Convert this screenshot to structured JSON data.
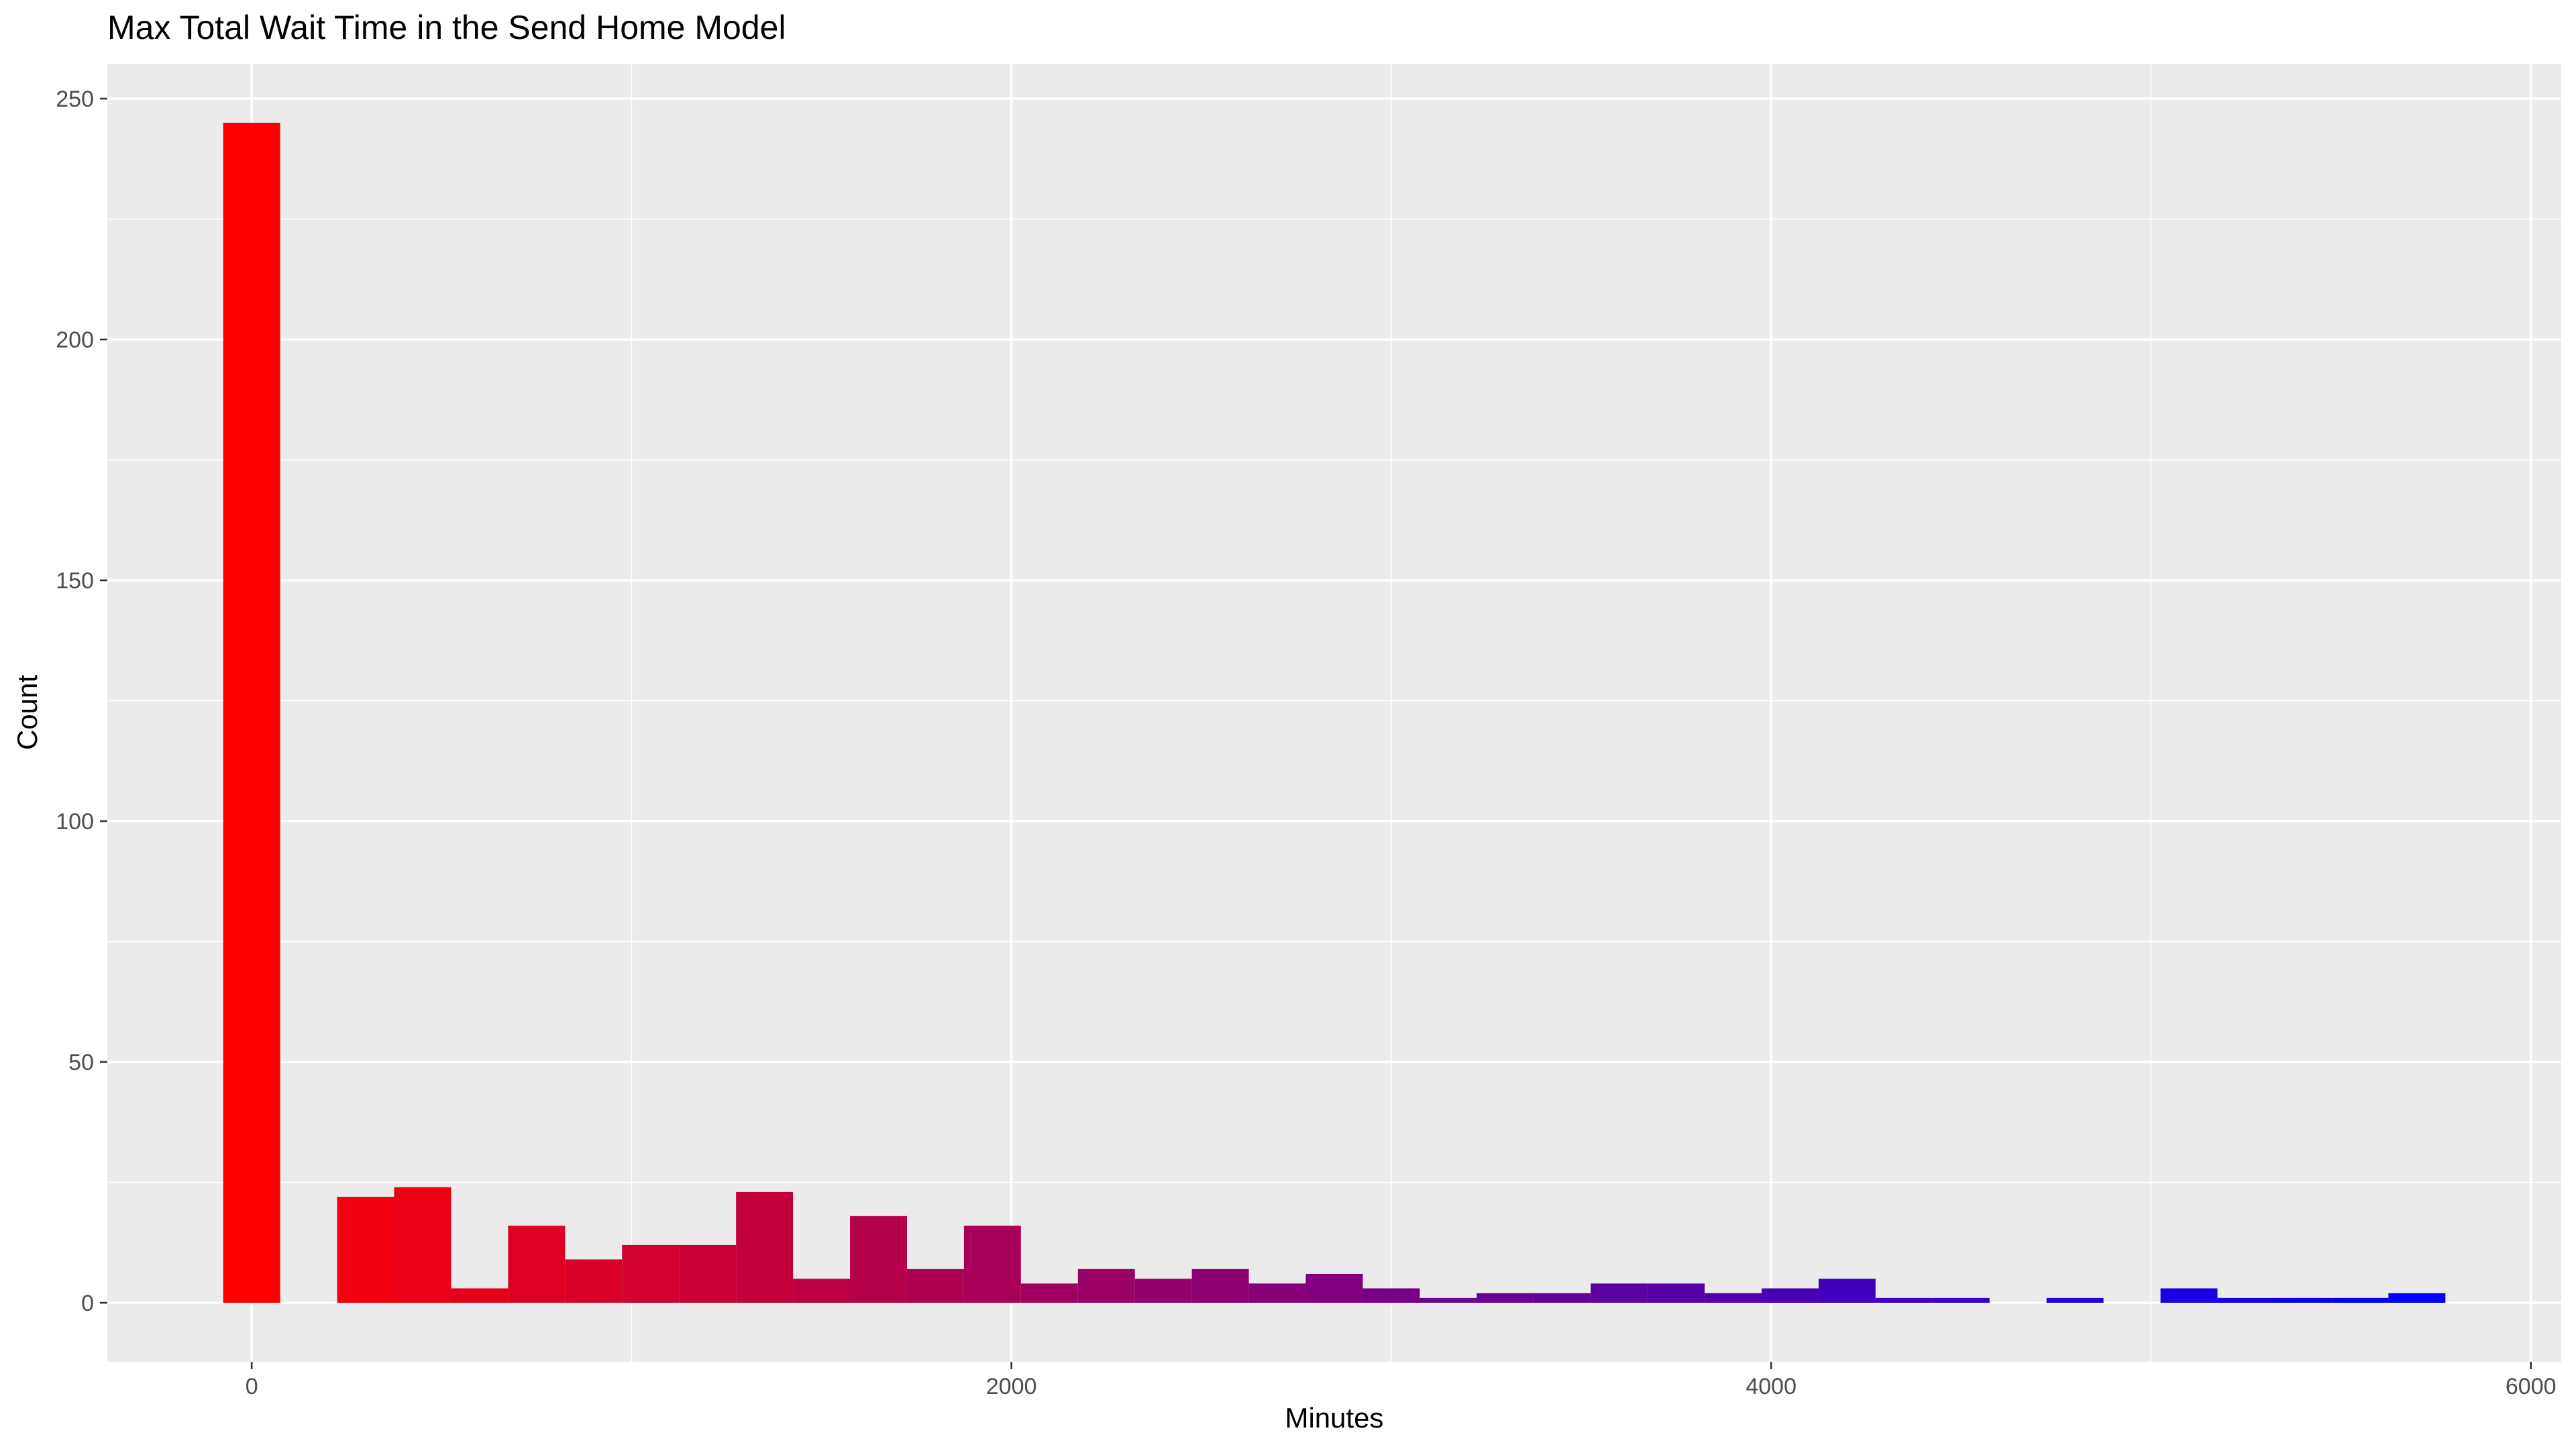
{
  "chart_data": {
    "type": "bar",
    "title": "Max Total Wait Time in the Send Home Model",
    "xlabel": "Minutes",
    "ylabel": "Count",
    "xlim": [
      -380,
      6080
    ],
    "ylim": [
      -12.25,
      257.25
    ],
    "x_ticks": [
      0,
      2000,
      4000,
      6000
    ],
    "x_tick_labels": [
      "0",
      "2000",
      "4000",
      "6000"
    ],
    "y_ticks": [
      0,
      50,
      100,
      150,
      200,
      250
    ],
    "y_tick_labels": [
      "0",
      "50",
      "100",
      "150",
      "200",
      "250"
    ],
    "bin_width": 150,
    "bin_centers": [
      0,
      150,
      300,
      450,
      600,
      750,
      900,
      1050,
      1200,
      1350,
      1500,
      1650,
      1800,
      1950,
      2100,
      2250,
      2400,
      2550,
      2700,
      2850,
      3000,
      3150,
      3300,
      3450,
      3600,
      3750,
      3900,
      4050,
      4200,
      4350,
      4500,
      4650,
      4800,
      4950,
      5100,
      5250,
      5400,
      5550,
      5700
    ],
    "values": [
      245,
      0,
      22,
      24,
      3,
      16,
      9,
      12,
      12,
      23,
      5,
      18,
      7,
      16,
      4,
      7,
      5,
      7,
      4,
      6,
      3,
      1,
      2,
      2,
      4,
      4,
      2,
      3,
      5,
      1,
      1,
      0,
      1,
      0,
      3,
      1,
      1,
      1,
      2
    ],
    "fill_gradient": {
      "low": "#FF0000",
      "high": "#0000FF"
    },
    "panel_background": "#EBEBEB",
    "grid": true,
    "legend": "none"
  }
}
